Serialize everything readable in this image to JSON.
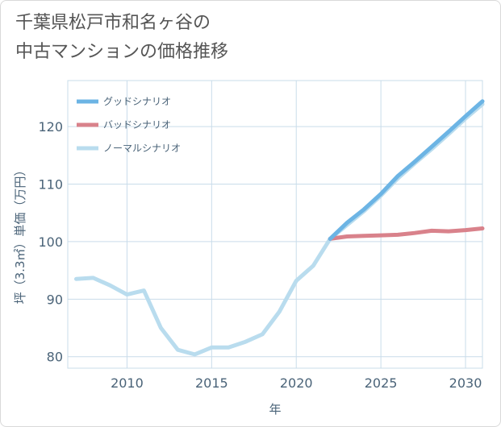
{
  "title_lines": [
    "千葉県松戸市和名ヶ谷の",
    "中古マンションの価格推移"
  ],
  "colors": {
    "good": "#6cb4e4",
    "bad": "#d9828b",
    "normal": "#b9dcee",
    "grid": "#c9dcea",
    "axis_text": "#4a6378"
  },
  "chart_data": {
    "type": "line",
    "title": "千葉県松戸市和名ヶ谷の中古マンションの価格推移",
    "xlabel": "年",
    "ylabel": "坪（3.3㎡）単価（万円）",
    "xlim": [
      2006.5,
      2031
    ],
    "ylim": [
      78,
      128
    ],
    "x_ticks": [
      2010,
      2015,
      2020,
      2025,
      2030
    ],
    "y_ticks": [
      80,
      90,
      100,
      110,
      120
    ],
    "x_tick_labels": [
      "2010",
      "2015",
      "2020",
      "2025",
      "2030"
    ],
    "y_tick_labels": [
      "80",
      "90",
      "100",
      "110",
      "120"
    ],
    "legend_position": "top-left",
    "series": [
      {
        "name": "グッドシナリオ",
        "color_key": "good",
        "x": [
          2022,
          2023,
          2024,
          2025,
          2026,
          2027,
          2028,
          2029,
          2030,
          2031
        ],
        "values": [
          100.5,
          103.3,
          105.6,
          108.3,
          111.4,
          113.9,
          116.5,
          119.1,
          121.8,
          124.4
        ]
      },
      {
        "name": "バッドシナリオ",
        "color_key": "bad",
        "x": [
          2022,
          2023,
          2024,
          2025,
          2026,
          2027,
          2028,
          2029,
          2030,
          2031
        ],
        "values": [
          100.5,
          100.9,
          101.0,
          101.1,
          101.2,
          101.5,
          101.9,
          101.8,
          102.0,
          102.3
        ]
      },
      {
        "name": "ノーマルシナリオ",
        "color_key": "normal",
        "x": [
          2007,
          2008,
          2009,
          2010,
          2011,
          2012,
          2013,
          2014,
          2015,
          2016,
          2017,
          2018,
          2019,
          2020,
          2021,
          2022,
          2023,
          2024,
          2025,
          2026,
          2027,
          2028,
          2029,
          2030,
          2031
        ],
        "values": [
          93.5,
          93.7,
          92.4,
          90.8,
          91.5,
          85.0,
          81.2,
          80.4,
          81.6,
          81.6,
          82.6,
          83.9,
          87.8,
          93.2,
          95.8,
          100.5,
          102.9,
          105.3,
          108.0,
          111.0,
          113.6,
          116.1,
          118.7,
          121.4,
          123.9
        ]
      }
    ]
  }
}
